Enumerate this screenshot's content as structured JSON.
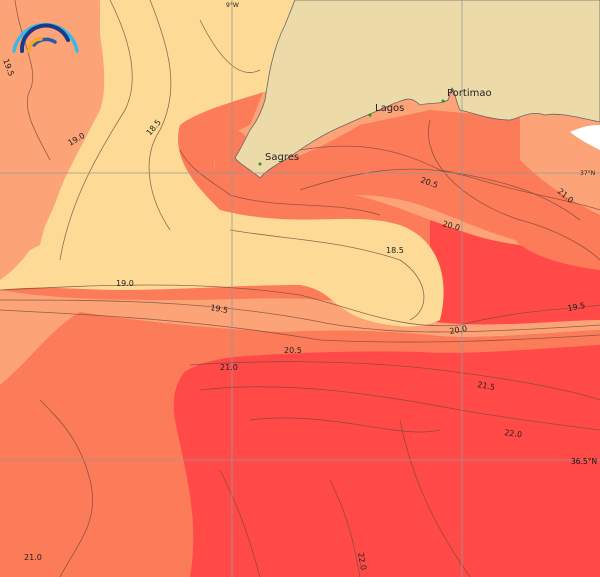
{
  "map": {
    "colors": {
      "land": "#ecdba9",
      "sst_lt_19": "#fddb97",
      "sst_19_20": "#fca377",
      "sst_20_21": "#fc7b58",
      "sst_gt_21": "#ff4a48",
      "no_data": "#ffffff"
    },
    "gridlines": {
      "lon_label": "9°W",
      "lat_labels": [
        "37°N",
        "36.5°N"
      ]
    },
    "places": [
      {
        "name": "Sagres"
      },
      {
        "name": "Lagos"
      },
      {
        "name": "Portimao"
      }
    ],
    "contour_labels": [
      "19.5",
      "19.0",
      "18.5",
      "20.5",
      "21.0",
      "20.0",
      "18.5",
      "19.0",
      "19.5",
      "20.0",
      "19.5",
      "20.5",
      "21.0",
      "21.5",
      "22.0",
      "21.0",
      "22.0"
    ],
    "logo": "rainbow-arcs-logo"
  }
}
